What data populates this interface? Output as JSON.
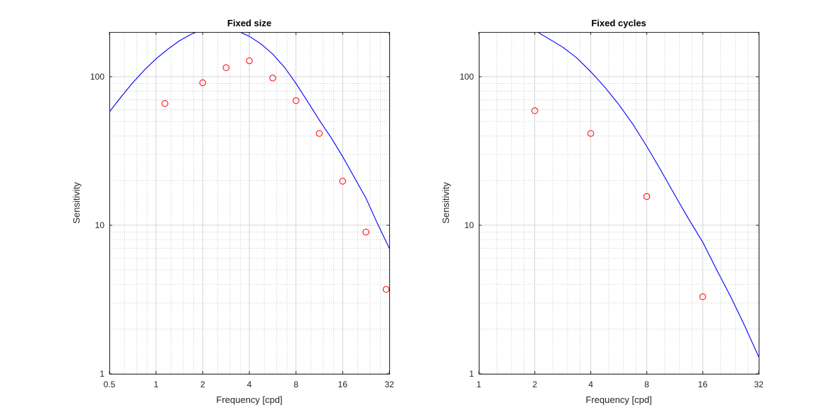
{
  "colors": {
    "curve": "#0000ff",
    "points": "#ff0000",
    "axes": "#262626",
    "grid_major": "#d0d0d0",
    "grid_minor": "#bdbdbd"
  },
  "chart_data": [
    {
      "type": "scatter",
      "title": "Fixed size",
      "xlabel": "Frequency [cpd]",
      "ylabel": "Sensitivity",
      "xscale": "log2",
      "yscale": "log10",
      "xlim": [
        0.5,
        32
      ],
      "ylim": [
        1,
        200
      ],
      "xticks": [
        0.5,
        1,
        2,
        4,
        8,
        16,
        32
      ],
      "xtick_labels": [
        "0.5",
        "1",
        "2",
        "4",
        "8",
        "16",
        "32"
      ],
      "yticks": [
        1,
        10,
        100
      ],
      "ytick_labels": [
        "1",
        "10",
        "100"
      ],
      "grid": true,
      "series": [
        {
          "kind": "markers",
          "marker": "circle",
          "x": [
            1.14,
            2.0,
            2.83,
            4.0,
            5.66,
            8.0,
            11.3,
            16.0,
            22.6,
            30.5
          ],
          "y": [
            66,
            91,
            115,
            128,
            98,
            69,
            41.5,
            19.8,
            9.0,
            3.7
          ]
        },
        {
          "kind": "line",
          "x": [
            0.5,
            0.6,
            0.707,
            0.841,
            1.0,
            1.19,
            1.41,
            1.68,
            2.0,
            2.38,
            2.83,
            3.36,
            4.0,
            4.76,
            5.66,
            6.73,
            8.0,
            9.51,
            11.31,
            13.45,
            16.0,
            19.03,
            22.63,
            26.91,
            32.0
          ],
          "y": [
            58,
            74,
            91,
            111,
            132,
            153,
            174,
            193,
            208,
            214,
            212,
            203,
            187,
            166,
            142,
            116,
            90,
            68,
            51,
            39,
            29,
            21,
            15.2,
            10.2,
            7.0
          ]
        }
      ]
    },
    {
      "type": "scatter",
      "title": "Fixed cycles",
      "xlabel": "Frequency [cpd]",
      "ylabel": "Sensitivity",
      "xscale": "log2",
      "yscale": "log10",
      "xlim": [
        1,
        32
      ],
      "ylim": [
        1,
        200
      ],
      "xticks": [
        1,
        2,
        4,
        8,
        16,
        32
      ],
      "xtick_labels": [
        "1",
        "2",
        "4",
        "8",
        "16",
        "32"
      ],
      "yticks": [
        1,
        10,
        100
      ],
      "ytick_labels": [
        "1",
        "10",
        "100"
      ],
      "grid": true,
      "series": [
        {
          "kind": "markers",
          "marker": "circle",
          "x": [
            2,
            4,
            8,
            16
          ],
          "y": [
            59,
            41.5,
            15.6,
            3.3
          ]
        },
        {
          "kind": "line",
          "x": [
            2.0,
            2.38,
            2.83,
            3.36,
            4.0,
            4.76,
            5.66,
            6.73,
            8.0,
            9.51,
            11.31,
            13.45,
            16.0,
            19.03,
            22.63,
            26.91,
            32.0
          ],
          "y": [
            205,
            180,
            158,
            134,
            108,
            85,
            65,
            48,
            34,
            23.5,
            16,
            11,
            7.7,
            5.0,
            3.3,
            2.1,
            1.3
          ]
        }
      ]
    }
  ]
}
